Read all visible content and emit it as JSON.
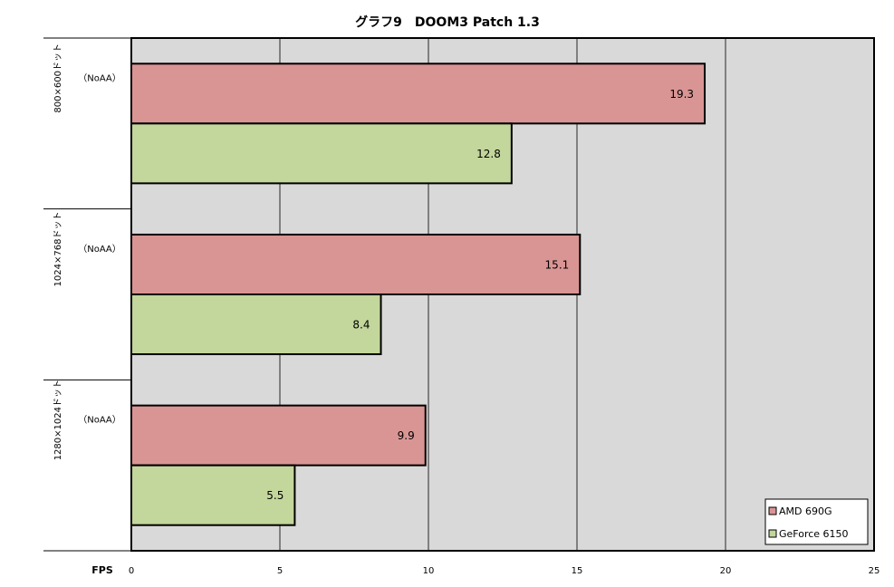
{
  "chart_data": {
    "type": "bar",
    "orientation": "horizontal",
    "title": "グラフ9　DOOM3 Patch 1.3",
    "x_label": "FPS",
    "categories": [
      [
        "800×600ドット",
        "（NoAA）"
      ],
      [
        "1024×768ドット",
        "（NoAA）"
      ],
      [
        "1280×1024ドット",
        "（NoAA）"
      ]
    ],
    "series": [
      {
        "name": "AMD 690G",
        "color": "#d99594",
        "values": [
          19.3,
          15.1,
          9.9
        ]
      },
      {
        "name": "GeForce 6150",
        "color": "#c3d69b",
        "values": [
          12.8,
          8.4,
          5.5
        ]
      }
    ],
    "xlim": [
      0,
      25
    ],
    "xticks": [
      0,
      5,
      10,
      15,
      20,
      25
    ],
    "grid": true,
    "legend": "lower right"
  }
}
